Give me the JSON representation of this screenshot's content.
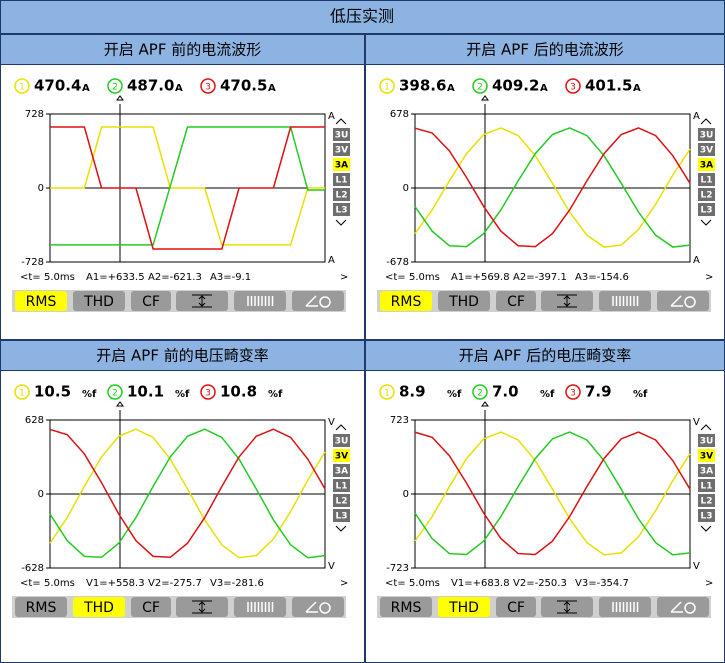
{
  "title": "低压实测",
  "panels": [
    {
      "heading": "开启 APF 前的电流波形",
      "readings": [
        {
          "index": "1",
          "value": "470.4",
          "unit": "A"
        },
        {
          "index": "2",
          "value": "487.0",
          "unit": "A"
        },
        {
          "index": "3",
          "value": "470.5",
          "unit": "A"
        }
      ],
      "chart_data": {
        "type": "line",
        "ylim": [
          -728,
          728
        ],
        "yticks": [
          -728,
          0,
          728
        ],
        "unit": "A",
        "series": [
          {
            "color": "#e8e000",
            "values": [
              0,
              0,
              0,
              600,
              600,
              600,
              600,
              0,
              0,
              0,
              -560,
              -560,
              -560,
              -560,
              -560,
              0,
              0
            ]
          },
          {
            "color": "#22cc22",
            "values": [
              -560,
              -560,
              -560,
              -560,
              -560,
              -560,
              -560,
              20,
              600,
              600,
              600,
              600,
              600,
              600,
              600,
              -20,
              -20
            ]
          },
          {
            "color": "#dd1111",
            "values": [
              600,
              600,
              600,
              0,
              0,
              0,
              -600,
              -600,
              -600,
              -600,
              -600,
              0,
              0,
              0,
              600,
              600,
              600
            ]
          }
        ]
      },
      "channels": [
        "3U",
        "3V",
        "3A",
        "L1",
        "L2",
        "L3"
      ],
      "selected_channel": 2,
      "footer": {
        "prefix": "<t=",
        "timebase": "5.0ms",
        "readings": [
          "A1=+633.5",
          "A2=-621.3",
          "A3=-9.1"
        ],
        "next": ">"
      },
      "buttons": [
        "RMS",
        "THD",
        "CF"
      ],
      "active_button": 0
    },
    {
      "heading": "开启 APF 后的电流波形",
      "readings": [
        {
          "index": "1",
          "value": "398.6",
          "unit": "A"
        },
        {
          "index": "2",
          "value": "409.2",
          "unit": "A"
        },
        {
          "index": "3",
          "value": "401.5",
          "unit": "A"
        }
      ],
      "chart_data": {
        "type": "line",
        "ylim": [
          -678,
          678
        ],
        "yticks": [
          -678,
          0,
          678
        ],
        "unit": "A",
        "series": [
          {
            "color": "#e8e000",
            "values": [
              -418,
              -200,
              65,
              315,
              490,
              550,
              480,
              296,
              43,
              -220,
              -432,
              -541,
              -523,
              -381,
              -149,
              118,
              357
            ]
          },
          {
            "color": "#22cc22",
            "values": [
              -170,
              -396,
              -529,
              -537,
              -418,
              -200,
              65,
              315,
              490,
              550,
              480,
              296,
              43,
              -220,
              -432,
              -541,
              -523
            ]
          },
          {
            "color": "#dd1111",
            "values": [
              548,
              504,
              340,
              96,
              -170,
              -396,
              -529,
              -537,
              -418,
              -200,
              65,
              315,
              490,
              550,
              480,
              296,
              43
            ]
          }
        ]
      },
      "channels": [
        "3U",
        "3V",
        "3A",
        "L1",
        "L2",
        "L3"
      ],
      "selected_channel": 2,
      "footer": {
        "prefix": "<t=",
        "timebase": "5.0ms",
        "readings": [
          "A1=+569.8",
          "A2=-397.1",
          "A3=-154.6"
        ],
        "next": ">"
      },
      "buttons": [
        "RMS",
        "THD",
        "CF"
      ],
      "active_button": 0
    },
    {
      "heading": "开启 APF 前的电压畸变率",
      "readings": [
        {
          "index": "1",
          "value": "10.5",
          "unit": "%f"
        },
        {
          "index": "2",
          "value": "10.1",
          "unit": "%f"
        },
        {
          "index": "3",
          "value": "10.8",
          "unit": "%f"
        }
      ],
      "chart_data": {
        "type": "line",
        "ylim": [
          -628,
          628
        ],
        "yticks": [
          -628,
          0,
          628
        ],
        "unit": "V",
        "series": [
          {
            "color": "#e8e000",
            "values": [
              -418,
              -200,
              65,
              315,
              490,
              550,
              480,
              296,
              43,
              -220,
              -432,
              -541,
              -523,
              -381,
              -149,
              118,
              357
            ]
          },
          {
            "color": "#22cc22",
            "values": [
              -170,
              -396,
              -529,
              -537,
              -418,
              -200,
              65,
              315,
              490,
              550,
              480,
              296,
              43,
              -220,
              -432,
              -541,
              -523
            ]
          },
          {
            "color": "#dd1111",
            "values": [
              548,
              504,
              340,
              96,
              -170,
              -396,
              -529,
              -537,
              -418,
              -200,
              65,
              315,
              490,
              550,
              480,
              296,
              43
            ]
          }
        ]
      },
      "channels": [
        "3U",
        "3V",
        "3A",
        "L1",
        "L2",
        "L3"
      ],
      "selected_channel": 1,
      "footer": {
        "prefix": "<t=",
        "timebase": "5.0ms",
        "readings": [
          "V1=+558.3",
          "V2=-275.7",
          "V3=-281.6"
        ],
        "next": ">"
      },
      "buttons": [
        "RMS",
        "THD",
        "CF"
      ],
      "active_button": 1
    },
    {
      "heading": "开启 APF 后的电压畸变率",
      "readings": [
        {
          "index": "1",
          "value": "8.9",
          "unit": "%f"
        },
        {
          "index": "2",
          "value": "7.0",
          "unit": "%f"
        },
        {
          "index": "3",
          "value": "7.9",
          "unit": "%f"
        }
      ],
      "chart_data": {
        "type": "line",
        "ylim": [
          -723,
          723
        ],
        "yticks": [
          -723,
          0,
          723
        ],
        "unit": "V",
        "series": [
          {
            "color": "#e8e000",
            "values": [
              -460,
              -220,
              72,
              347,
              539,
              605,
              528,
              326,
              47,
              -242,
              -475,
              -595,
              -575,
              -419,
              -164,
              130,
              393
            ]
          },
          {
            "color": "#22cc22",
            "values": [
              -187,
              -436,
              -582,
              -591,
              -460,
              -220,
              72,
              347,
              539,
              605,
              528,
              326,
              47,
              -242,
              -475,
              -595,
              -575
            ]
          },
          {
            "color": "#dd1111",
            "values": [
              603,
              554,
              374,
              106,
              -187,
              -436,
              -582,
              -591,
              -460,
              -220,
              72,
              347,
              539,
              605,
              528,
              326,
              47
            ]
          }
        ]
      },
      "channels": [
        "3U",
        "3V",
        "3A",
        "L1",
        "L2",
        "L3"
      ],
      "selected_channel": 1,
      "footer": {
        "prefix": "<t=",
        "timebase": "5.0ms",
        "readings": [
          "V1=+683.8",
          "V2=-250.3",
          "V3=-354.7"
        ],
        "next": ">"
      },
      "buttons": [
        "RMS",
        "THD",
        "CF"
      ],
      "active_button": 1
    }
  ]
}
